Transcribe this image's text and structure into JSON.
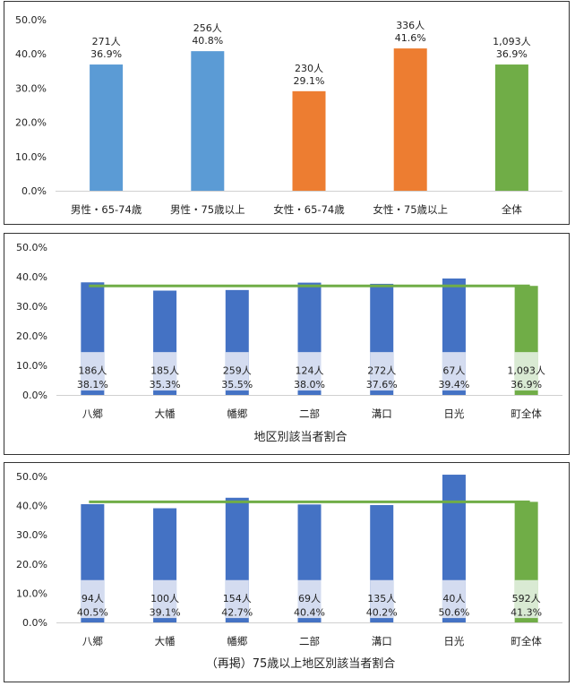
{
  "chart_data": [
    {
      "type": "bar",
      "title": "",
      "ylim": [
        0,
        50
      ],
      "yticks": [
        "0.0%",
        "10.0%",
        "20.0%",
        "30.0%",
        "40.0%",
        "50.0%"
      ],
      "grid": false,
      "categories": [
        "男性・65-74歳",
        "男性・75歳以上",
        "女性・65-74歳",
        "女性・75歳以上",
        "全体"
      ],
      "values": [
        36.9,
        40.8,
        29.1,
        41.6,
        36.9
      ],
      "counts": [
        "271人",
        "256人",
        "230人",
        "336人",
        "1,093人"
      ],
      "pct_labels": [
        "36.9%",
        "40.8%",
        "29.1%",
        "41.6%",
        "36.9%"
      ],
      "colors": [
        "#5b9bd5",
        "#5b9bd5",
        "#ed7d31",
        "#ed7d31",
        "#70ad47"
      ]
    },
    {
      "type": "bar",
      "title": "地区別該当者割合",
      "ylim": [
        0,
        50
      ],
      "yticks": [
        "0.0%",
        "10.0%",
        "20.0%",
        "30.0%",
        "40.0%",
        "50.0%"
      ],
      "grid": false,
      "categories": [
        "八郷",
        "大幡",
        "幡郷",
        "二部",
        "溝口",
        "日光",
        "町全体"
      ],
      "values": [
        38.1,
        35.3,
        35.5,
        38.0,
        37.6,
        39.4,
        36.9
      ],
      "counts": [
        "186人",
        "185人",
        "259人",
        "124人",
        "272人",
        "67人",
        "1,093人"
      ],
      "pct_labels": [
        "38.1%",
        "35.3%",
        "35.5%",
        "38.0%",
        "37.6%",
        "39.4%",
        "36.9%"
      ],
      "colors": [
        "#4472c4",
        "#4472c4",
        "#4472c4",
        "#4472c4",
        "#4472c4",
        "#4472c4",
        "#70ad47"
      ],
      "reference_line": 36.9,
      "reference_color": "#70ad47"
    },
    {
      "type": "bar",
      "title": "（再掲）75歳以上地区別該当者割合",
      "ylim": [
        0,
        50
      ],
      "yticks": [
        "0.0%",
        "10.0%",
        "20.0%",
        "30.0%",
        "40.0%",
        "50.0%"
      ],
      "grid": false,
      "categories": [
        "八郷",
        "大幡",
        "幡郷",
        "二部",
        "溝口",
        "日光",
        "町全体"
      ],
      "values": [
        40.5,
        39.1,
        42.7,
        40.4,
        40.2,
        50.6,
        41.3
      ],
      "counts": [
        "94人",
        "100人",
        "154人",
        "69人",
        "135人",
        "40人",
        "592人"
      ],
      "pct_labels": [
        "40.5%",
        "39.1%",
        "42.7%",
        "40.4%",
        "40.2%",
        "50.6%",
        "41.3%"
      ],
      "colors": [
        "#4472c4",
        "#4472c4",
        "#4472c4",
        "#4472c4",
        "#4472c4",
        "#4472c4",
        "#70ad47"
      ],
      "reference_line": 41.3,
      "reference_color": "#70ad47"
    }
  ]
}
